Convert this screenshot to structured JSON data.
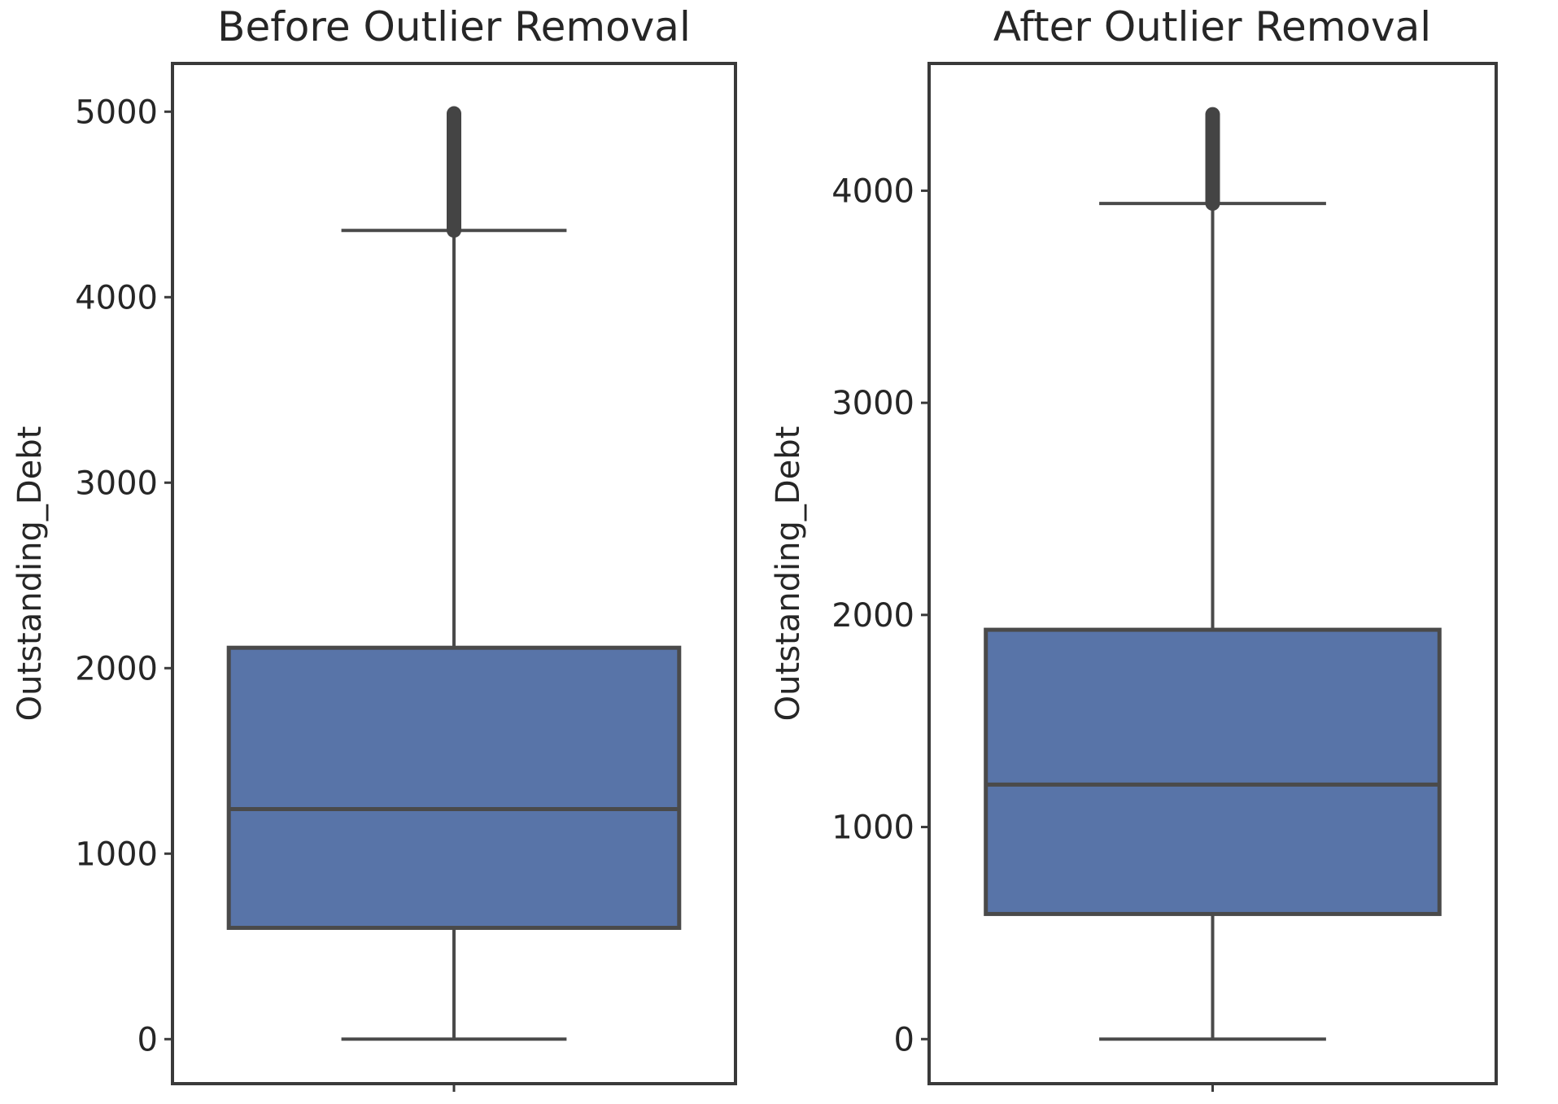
{
  "chart_data": [
    {
      "type": "box",
      "title": "Before Outlier Removal",
      "xlabel": "",
      "ylabel": "Outstanding_Debt",
      "ylim": [
        -240,
        5260
      ],
      "yticks": [
        0,
        1000,
        2000,
        3000,
        4000,
        5000
      ],
      "ytick_labels": [
        "0",
        "1000",
        "2000",
        "3000",
        "4000",
        "5000"
      ],
      "box": {
        "whisker_low": 0,
        "q1": 600,
        "median": 1240,
        "q3": 2110,
        "whisker_high": 4360,
        "outliers_min": 4360,
        "outliers_max": 4990
      },
      "box_color": "#5874a8",
      "grid": false
    },
    {
      "type": "box",
      "title": "After Outlier Removal",
      "xlabel": "",
      "ylabel": "Outstanding_Debt",
      "ylim": [
        -210,
        4600
      ],
      "yticks": [
        0,
        1000,
        2000,
        3000,
        4000
      ],
      "ytick_labels": [
        "0",
        "1000",
        "2000",
        "3000",
        "4000"
      ],
      "box": {
        "whisker_low": 0,
        "q1": 590,
        "median": 1200,
        "q3": 1930,
        "whisker_high": 3940,
        "outliers_min": 3940,
        "outliers_max": 4360
      },
      "box_color": "#5874a8",
      "grid": false
    }
  ]
}
